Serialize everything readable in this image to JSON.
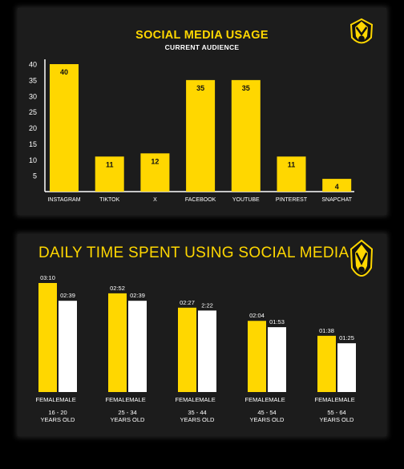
{
  "colors": {
    "accent": "#FFD700",
    "background": "#000000",
    "panel": "#1C1C1C",
    "male": "#FFFFFF"
  },
  "icons": {
    "logo": "crest-logo"
  },
  "chart_data": [
    {
      "type": "bar",
      "title": "SOCIAL MEDIA USAGE",
      "subtitle": "CURRENT AUDIENCE",
      "categories": [
        "INSTAGRAM",
        "TIKTOK",
        "X",
        "FACEBOOK",
        "YOUTUBE",
        "PINTEREST",
        "SNAPCHAT"
      ],
      "values": [
        40,
        11,
        12,
        35,
        35,
        11,
        4
      ],
      "y_ticks": [
        5,
        10,
        15,
        20,
        25,
        30,
        35,
        40
      ],
      "ylim": [
        0,
        40
      ],
      "grid": false,
      "legend": "none"
    },
    {
      "type": "bar",
      "title": "DAILY TIME SPENT USING SOCIAL MEDIA",
      "categories": [
        "16 - 20 YEARS OLD",
        "25 - 34 YEARS OLD",
        "35 - 44 YEARS OLD",
        "45 - 54 YEARS OLD",
        "55 - 64 YEARS OLD"
      ],
      "category_lines": [
        [
          "16 - 20",
          "YEARS OLD"
        ],
        [
          "25 - 34",
          "YEARS OLD"
        ],
        [
          "35 - 44",
          "YEARS OLD"
        ],
        [
          "45 - 54",
          "YEARS OLD"
        ],
        [
          "55 - 64",
          "YEARS OLD"
        ]
      ],
      "series": [
        {
          "name": "FEMALE",
          "values": [
            "03:10",
            "02:52",
            "02:27",
            "02:04",
            "01:38"
          ],
          "color": "#FFD700"
        },
        {
          "name": "MALE",
          "values": [
            "02:39",
            "02:39",
            "2:22",
            "01:53",
            "01:25"
          ],
          "color": "#FFFFFF"
        }
      ],
      "unit": "hh:mm",
      "grid": false,
      "legend": "none"
    }
  ]
}
